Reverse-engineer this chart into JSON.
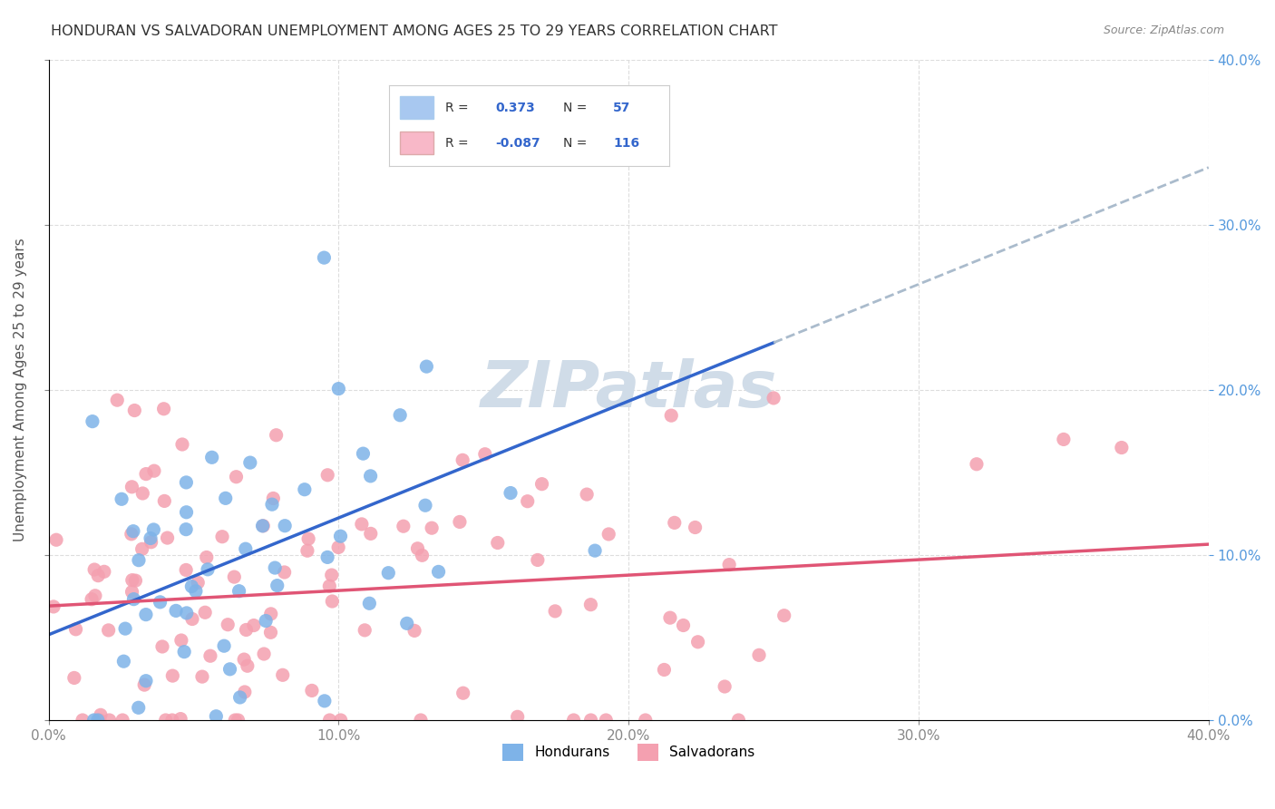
{
  "title": "HONDURAN VS SALVADORAN UNEMPLOYMENT AMONG AGES 25 TO 29 YEARS CORRELATION CHART",
  "source": "Source: ZipAtlas.com",
  "ylabel": "Unemployment Among Ages 25 to 29 years",
  "xlabel": "",
  "xlim": [
    0.0,
    0.4
  ],
  "ylim": [
    0.0,
    0.4
  ],
  "xtick_labels": [
    "0.0%",
    "10.0%",
    "20.0%",
    "30.0%",
    "40.0%"
  ],
  "xtick_vals": [
    0.0,
    0.1,
    0.2,
    0.3,
    0.4
  ],
  "ytick_labels_left": [
    "",
    "",
    "",
    "",
    ""
  ],
  "ytick_vals": [
    0.0,
    0.1,
    0.2,
    0.3,
    0.4
  ],
  "ytick_labels_right": [
    "0.0%",
    "10.0%",
    "20.0%",
    "30.0%",
    "40.0%"
  ],
  "honduran_R": 0.373,
  "honduran_N": 57,
  "salvadoran_R": -0.087,
  "salvadoran_N": 116,
  "honduran_color": "#7EB3E8",
  "salvadoran_color": "#F4A0B0",
  "trend_honduran_color": "#3366CC",
  "trend_salvadoran_color": "#E05575",
  "trend_dashed_color": "#AABBCC",
  "watermark_text": "ZIPatlas",
  "watermark_color": "#D0DCE8",
  "legend_box_color_honduran": "#A8C8F0",
  "legend_box_color_salvadoran": "#F8B8C8",
  "background_color": "#FFFFFF",
  "grid_color": "#DDDDDD",
  "title_color": "#333333",
  "axis_label_color": "#555555",
  "right_tick_color": "#5599DD"
}
